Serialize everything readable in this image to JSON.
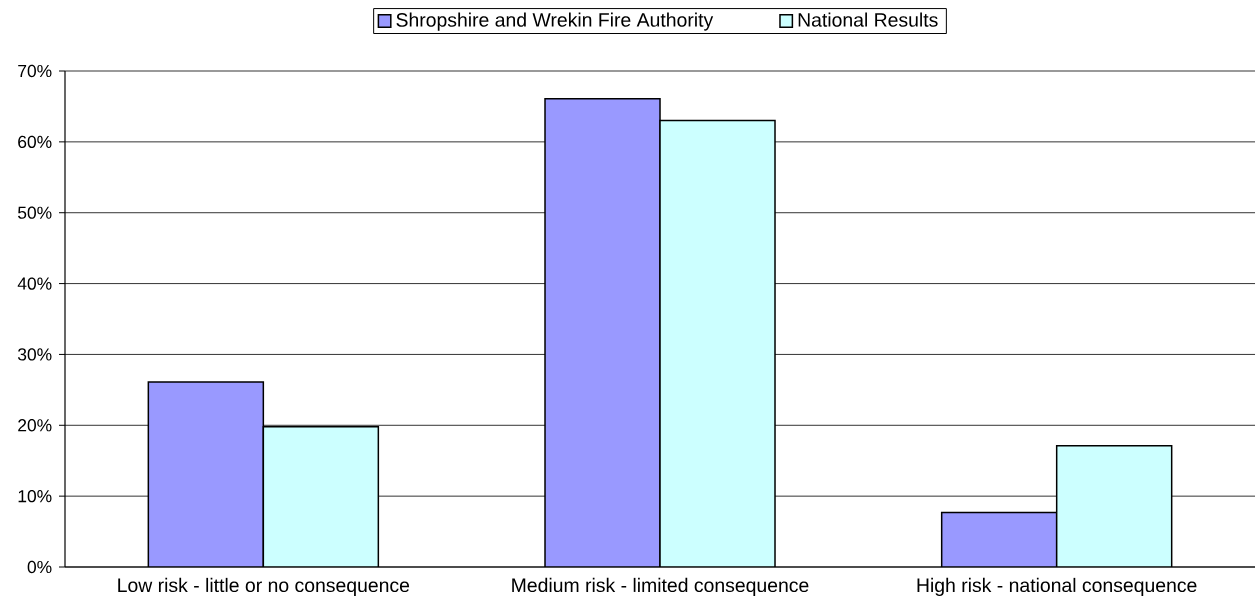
{
  "chart_data": {
    "type": "bar",
    "categories": [
      "Low risk - little or no consequence",
      "Medium risk - limited consequence",
      "High risk - national consequence"
    ],
    "series": [
      {
        "name": "Shropshire and Wrekin Fire Authority",
        "color": "#9999ff",
        "values": [
          26.1,
          66.1,
          7.7
        ]
      },
      {
        "name": "National Results",
        "color": "#ccffff",
        "values": [
          19.8,
          63.0,
          17.1
        ]
      }
    ],
    "ylim": [
      0,
      70
    ],
    "yticks": [
      {
        "value": 0,
        "label": "0%"
      },
      {
        "value": 10,
        "label": "10%"
      },
      {
        "value": 20,
        "label": "20%"
      },
      {
        "value": 30,
        "label": "30%"
      },
      {
        "value": 40,
        "label": "40%"
      },
      {
        "value": 50,
        "label": "50%"
      },
      {
        "value": 60,
        "label": "60%"
      },
      {
        "value": 70,
        "label": "70%"
      }
    ],
    "grid": "y",
    "legend": "top"
  }
}
